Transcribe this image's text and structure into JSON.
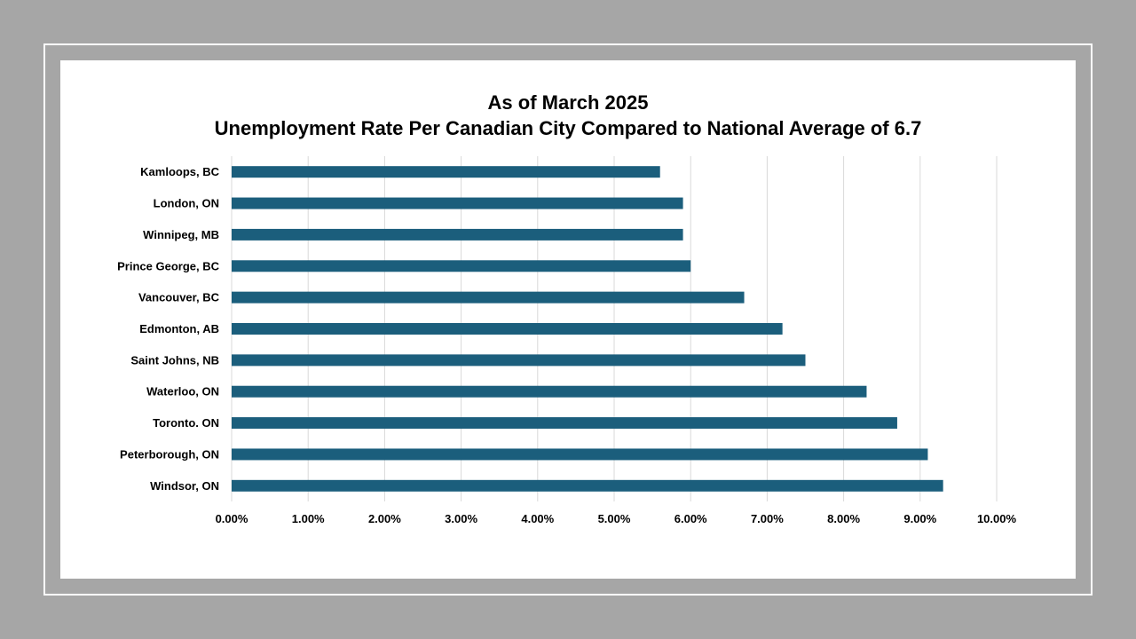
{
  "chart_data": {
    "type": "bar",
    "orientation": "horizontal",
    "title": "As of March 2025",
    "subtitle": "Unemployment Rate Per Canadian City Compared to National Average of 6.7",
    "xlabel": "",
    "ylabel": "",
    "categories": [
      "Kamloops, BC",
      "London, ON",
      "Winnipeg, MB",
      "Prince George, BC",
      "Vancouver, BC",
      "Edmonton, AB",
      "Saint Johns, NB",
      "Waterloo, ON",
      "Toronto. ON",
      "Peterborough, ON",
      "Windsor, ON"
    ],
    "values": [
      5.6,
      5.9,
      5.9,
      6.0,
      6.7,
      7.2,
      7.5,
      8.3,
      8.7,
      9.1,
      9.3
    ],
    "xlim": [
      0,
      10
    ],
    "x_ticks": [
      0,
      1,
      2,
      3,
      4,
      5,
      6,
      7,
      8,
      9,
      10
    ],
    "x_tick_labels": [
      "0.00%",
      "1.00%",
      "2.00%",
      "3.00%",
      "4.00%",
      "5.00%",
      "6.00%",
      "7.00%",
      "8.00%",
      "9.00%",
      "10.00%"
    ],
    "grid": "vertical",
    "legend": "none",
    "colors": {
      "bar": "#1b5e7c",
      "gridline": "#d9d9d9",
      "background": "#a6a6a6",
      "frame": "#ffffff",
      "card": "#ffffff"
    }
  }
}
